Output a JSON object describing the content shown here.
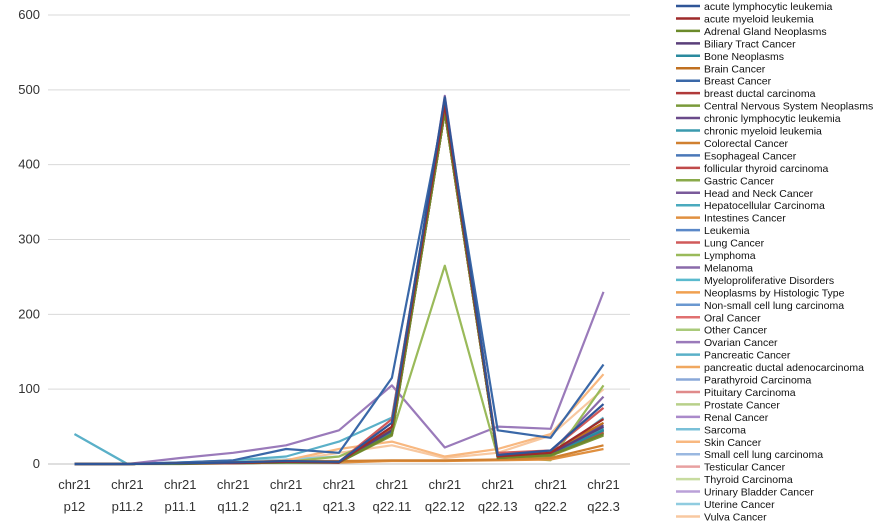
{
  "chart_data": {
    "type": "line",
    "title": "",
    "xlabel": "",
    "ylabel": "",
    "ylim": [
      0,
      600
    ],
    "yticks": [
      "0",
      "100",
      "200",
      "300",
      "400",
      "500",
      "600"
    ],
    "grid": "horizontal",
    "legend_position": "right",
    "categories": [
      {
        "line1": "chr21",
        "line2": "p12"
      },
      {
        "line1": "chr21",
        "line2": "p11.2"
      },
      {
        "line1": "chr21",
        "line2": "p11.1"
      },
      {
        "line1": "chr21",
        "line2": "q11.2"
      },
      {
        "line1": "chr21",
        "line2": "q21.1"
      },
      {
        "line1": "chr21",
        "line2": "q21.3"
      },
      {
        "line1": "chr21",
        "line2": "q22.11"
      },
      {
        "line1": "chr21",
        "line2": "q22.12"
      },
      {
        "line1": "chr21",
        "line2": "q22.13"
      },
      {
        "line1": "chr21",
        "line2": "q22.2"
      },
      {
        "line1": "chr21",
        "line2": "q22.3"
      }
    ],
    "series": [
      {
        "name": "acute lymphocytic leukemia",
        "color": "#2f5597",
        "values": [
          0,
          0,
          1,
          2,
          4,
          3,
          55,
          490,
          12,
          18,
          80
        ]
      },
      {
        "name": "acute myeloid leukemia",
        "color": "#9e2a2a",
        "values": [
          0,
          0,
          1,
          1,
          3,
          2,
          50,
          480,
          10,
          15,
          60
        ]
      },
      {
        "name": "Adrenal Gland Neoplasms",
        "color": "#6b8a2a",
        "values": [
          0,
          0,
          0,
          1,
          2,
          2,
          40,
          470,
          8,
          12,
          40
        ]
      },
      {
        "name": "Biliary Tract Cancer",
        "color": "#5a3f7a",
        "values": [
          0,
          0,
          1,
          1,
          3,
          3,
          45,
          485,
          10,
          14,
          50
        ]
      },
      {
        "name": "Bone Neoplasms",
        "color": "#2a8a9e",
        "values": [
          0,
          0,
          1,
          1,
          2,
          2,
          42,
          475,
          9,
          13,
          45
        ]
      },
      {
        "name": "Brain Cancer",
        "color": "#c07020",
        "values": [
          0,
          0,
          1,
          2,
          3,
          3,
          48,
          480,
          11,
          16,
          55
        ]
      },
      {
        "name": "Breast Cancer",
        "color": "#3a68a8",
        "values": [
          0,
          0,
          2,
          5,
          20,
          15,
          115,
          480,
          45,
          35,
          133
        ]
      },
      {
        "name": "breast ductal carcinoma",
        "color": "#b03a3a",
        "values": [
          0,
          0,
          1,
          1,
          3,
          2,
          40,
          470,
          8,
          12,
          40
        ]
      },
      {
        "name": "Central Nervous System Neoplasms",
        "color": "#7a9a3a",
        "values": [
          0,
          0,
          1,
          1,
          2,
          2,
          38,
          470,
          8,
          11,
          38
        ]
      },
      {
        "name": "chronic lymphocytic leukemia",
        "color": "#6a4a8a",
        "values": [
          0,
          0,
          1,
          2,
          3,
          3,
          46,
          482,
          10,
          15,
          52
        ]
      },
      {
        "name": "chronic myeloid leukemia",
        "color": "#3a9aae",
        "values": [
          0,
          0,
          1,
          1,
          3,
          3,
          44,
          478,
          10,
          14,
          48
        ]
      },
      {
        "name": "Colorectal Cancer",
        "color": "#d08030",
        "values": [
          0,
          0,
          1,
          2,
          4,
          4,
          5,
          5,
          6,
          8,
          25
        ]
      },
      {
        "name": "Esophageal Cancer",
        "color": "#4a78b8",
        "values": [
          0,
          0,
          1,
          2,
          3,
          3,
          40,
          475,
          9,
          13,
          45
        ]
      },
      {
        "name": "follicular thyroid carcinoma",
        "color": "#c04a4a",
        "values": [
          0,
          0,
          1,
          1,
          3,
          2,
          40,
          470,
          9,
          12,
          42
        ]
      },
      {
        "name": "Gastric Cancer",
        "color": "#8aaa4a",
        "values": [
          0,
          0,
          1,
          1,
          3,
          3,
          42,
          475,
          10,
          13,
          44
        ]
      },
      {
        "name": "Head and Neck Cancer",
        "color": "#7a5a9a",
        "values": [
          0,
          0,
          1,
          2,
          3,
          3,
          44,
          478,
          10,
          14,
          46
        ]
      },
      {
        "name": "Hepatocellular Carcinoma",
        "color": "#4aaabe",
        "values": [
          0,
          0,
          1,
          2,
          3,
          3,
          42,
          476,
          10,
          13,
          44
        ]
      },
      {
        "name": "Intestines Cancer",
        "color": "#e09040",
        "values": [
          0,
          0,
          1,
          1,
          2,
          2,
          4,
          4,
          5,
          6,
          20
        ]
      },
      {
        "name": "Leukemia",
        "color": "#5a88c8",
        "values": [
          0,
          0,
          1,
          2,
          3,
          3,
          44,
          478,
          11,
          14,
          47
        ]
      },
      {
        "name": "Lung Cancer",
        "color": "#d05a5a",
        "values": [
          0,
          0,
          1,
          2,
          4,
          3,
          60,
          485,
          15,
          18,
          75
        ]
      },
      {
        "name": "Lymphoma",
        "color": "#9aba5a",
        "values": [
          0,
          0,
          1,
          2,
          3,
          10,
          40,
          265,
          10,
          5,
          105
        ]
      },
      {
        "name": "Melanoma",
        "color": "#8a6aaa",
        "values": [
          0,
          0,
          1,
          2,
          3,
          3,
          45,
          492,
          12,
          15,
          90
        ]
      },
      {
        "name": "Myeloproliferative Disorders",
        "color": "#5abace",
        "values": [
          0,
          0,
          1,
          1,
          2,
          2,
          40,
          470,
          9,
          12,
          40
        ]
      },
      {
        "name": "Neoplasms by Histologic Type",
        "color": "#f0a050",
        "values": [
          0,
          0,
          1,
          1,
          3,
          3,
          40,
          470,
          9,
          12,
          42
        ]
      },
      {
        "name": "Non-small cell lung carcinoma",
        "color": "#6a98d0",
        "values": [
          0,
          0,
          1,
          2,
          3,
          3,
          44,
          478,
          10,
          14,
          46
        ]
      },
      {
        "name": "Oral Cancer",
        "color": "#e07070",
        "values": [
          0,
          0,
          1,
          1,
          3,
          3,
          40,
          470,
          9,
          12,
          42
        ]
      },
      {
        "name": "Other Cancer",
        "color": "#aaca7a",
        "values": [
          0,
          0,
          1,
          1,
          3,
          3,
          42,
          472,
          10,
          13,
          44
        ]
      },
      {
        "name": "Ovarian Cancer",
        "color": "#9a7aba",
        "values": [
          0,
          0,
          8,
          15,
          25,
          45,
          105,
          22,
          50,
          47,
          230
        ]
      },
      {
        "name": "Pancreatic Cancer",
        "color": "#5ab0c8",
        "values": [
          40,
          0,
          2,
          5,
          10,
          30,
          62,
          478,
          12,
          10,
          62
        ]
      },
      {
        "name": "pancreatic ductal adenocarcinoma",
        "color": "#f0a860",
        "values": [
          0,
          0,
          1,
          1,
          3,
          3,
          40,
          470,
          9,
          12,
          42
        ]
      },
      {
        "name": "Parathyroid Carcinoma",
        "color": "#8aa8d8",
        "values": [
          0,
          0,
          1,
          1,
          3,
          3,
          40,
          470,
          9,
          12,
          42
        ]
      },
      {
        "name": "Pituitary Carcinoma",
        "color": "#e08a8a",
        "values": [
          0,
          0,
          1,
          1,
          3,
          3,
          40,
          470,
          9,
          12,
          42
        ]
      },
      {
        "name": "Prostate Cancer",
        "color": "#b8d08a",
        "values": [
          0,
          0,
          1,
          1,
          3,
          3,
          42,
          472,
          10,
          13,
          44
        ]
      },
      {
        "name": "Renal Cancer",
        "color": "#aa8aca",
        "values": [
          0,
          0,
          1,
          2,
          3,
          3,
          44,
          476,
          10,
          14,
          46
        ]
      },
      {
        "name": "Sarcoma",
        "color": "#7ac0d8",
        "values": [
          0,
          0,
          1,
          1,
          3,
          3,
          42,
          472,
          10,
          13,
          44
        ]
      },
      {
        "name": "Skin Cancer",
        "color": "#f8b880",
        "values": [
          0,
          0,
          1,
          2,
          5,
          20,
          30,
          10,
          20,
          40,
          120
        ]
      },
      {
        "name": "Small cell lung carcinoma",
        "color": "#9ab8e0",
        "values": [
          0,
          0,
          1,
          1,
          3,
          3,
          42,
          472,
          10,
          13,
          44
        ]
      },
      {
        "name": "Testicular Cancer",
        "color": "#e8a0a0",
        "values": [
          0,
          0,
          1,
          1,
          3,
          3,
          40,
          470,
          9,
          12,
          42
        ]
      },
      {
        "name": "Thyroid Carcinoma",
        "color": "#c8dca0",
        "values": [
          0,
          0,
          1,
          1,
          3,
          3,
          40,
          470,
          9,
          12,
          42
        ]
      },
      {
        "name": "Urinary Bladder Cancer",
        "color": "#baa0d8",
        "values": [
          0,
          0,
          1,
          2,
          3,
          3,
          44,
          476,
          10,
          14,
          46
        ]
      },
      {
        "name": "Uterine Cancer",
        "color": "#90cce0",
        "values": [
          40,
          0,
          2,
          4,
          6,
          10,
          40,
          475,
          10,
          12,
          50
        ]
      },
      {
        "name": "Vulva Cancer",
        "color": "#f8c8a0",
        "values": [
          0,
          0,
          1,
          2,
          4,
          15,
          25,
          8,
          15,
          38,
          100
        ]
      }
    ]
  }
}
